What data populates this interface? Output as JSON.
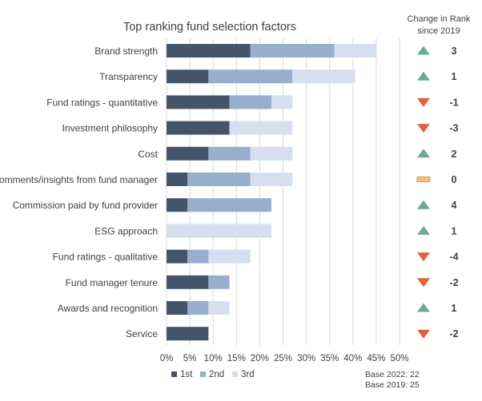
{
  "chart_data": {
    "type": "bar",
    "orientation": "horizontal",
    "stacked": true,
    "title": "Top ranking fund selection factors",
    "categories": [
      "Brand strength",
      "Transparency",
      "Fund ratings - quantitative",
      "Investment philosophy",
      "Cost",
      "Comments/insights from fund manager",
      "Commission paid by fund provider",
      "ESG approach",
      "Fund ratings - qualitative",
      "Fund manager tenure",
      "Awards and recognition",
      "Service"
    ],
    "series": [
      {
        "name": "1st",
        "color": "#44546a",
        "values": [
          18,
          9,
          13.5,
          13.5,
          9,
          4.5,
          4.5,
          0,
          4.5,
          9,
          4.5,
          9
        ]
      },
      {
        "name": "2nd",
        "color": "#97aecd",
        "values": [
          18,
          18,
          9,
          0,
          9,
          13.5,
          18,
          0,
          4.5,
          4.5,
          4.5,
          0
        ]
      },
      {
        "name": "3rd",
        "color": "#d5dfed",
        "values": [
          9,
          13.5,
          4.5,
          13.5,
          9,
          9,
          0,
          22.5,
          9,
          0,
          4.5,
          0
        ]
      }
    ],
    "xlim": [
      0,
      50
    ],
    "x_ticks": [
      "0%",
      "5%",
      "10%",
      "15%",
      "20%",
      "25%",
      "30%",
      "35%",
      "40%",
      "45%",
      "50%"
    ],
    "grid": true,
    "legend_position": "bottom",
    "change_header": [
      "Change in Rank",
      "since 2019"
    ],
    "change_values": [
      "3",
      "1",
      "-1",
      "-3",
      "2",
      "0",
      "4",
      "1",
      "-4",
      "-2",
      "1",
      "-2"
    ],
    "change_directions": [
      "up",
      "up",
      "down",
      "down",
      "up",
      "flat",
      "up",
      "up",
      "down",
      "down",
      "up",
      "down"
    ],
    "change_colors": {
      "up": "#6aab8e",
      "down": "#e0613e",
      "flat": "#f0c27a"
    },
    "base_notes": [
      "Base 2022: 22",
      "Base 2019: 25"
    ]
  }
}
